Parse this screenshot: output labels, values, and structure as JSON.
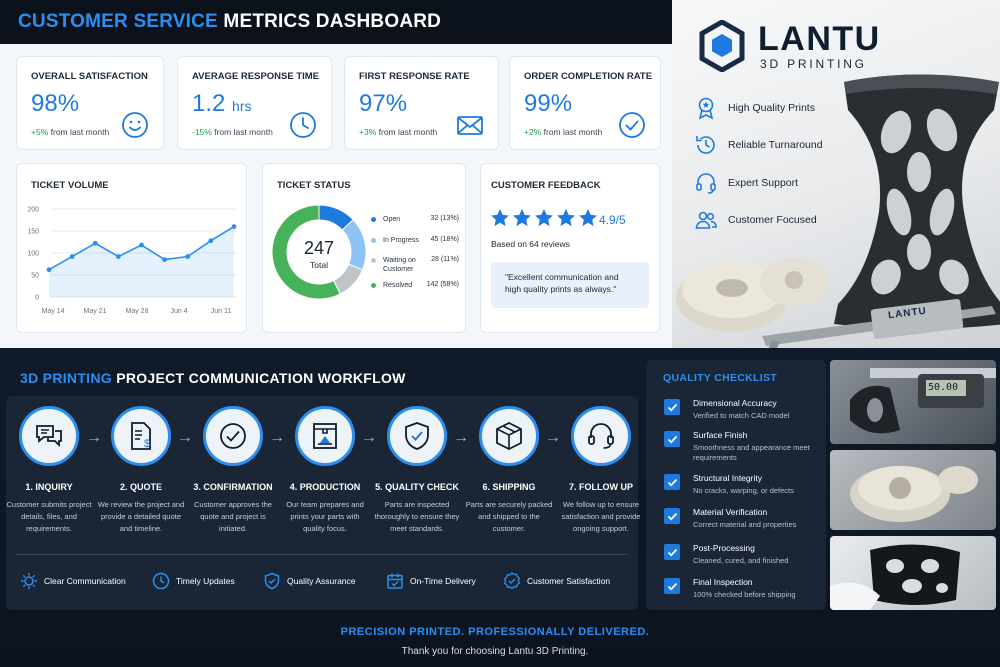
{
  "dashboard": {
    "title_accent": "CUSTOMER SERVICE",
    "title_rest": "METRICS DASHBOARD",
    "kpis": [
      {
        "title": "OVERALL SATISFACTION",
        "value": "98%",
        "unit": "",
        "change_value": "+5%",
        "change_text": "from last month",
        "icon": "smiley-icon"
      },
      {
        "title": "AVERAGE RESPONSE TIME",
        "value": "1.2",
        "unit": "hrs",
        "change_value": "-15%",
        "change_text": "from last month",
        "icon": "clock-icon"
      },
      {
        "title": "FIRST RESPONSE RATE",
        "value": "97%",
        "unit": "",
        "change_value": "+3%",
        "change_text": "from last month",
        "icon": "envelope-icon"
      },
      {
        "title": "ORDER COMPLETION RATE",
        "value": "99%",
        "unit": "",
        "change_value": "+2%",
        "change_text": "from last month",
        "icon": "check-circle-icon"
      }
    ],
    "ticket_volume_title": "TICKET VOLUME",
    "ticket_status": {
      "title": "TICKET STATUS",
      "total": "247",
      "total_label": "Total",
      "legend": [
        {
          "label": "Open",
          "count": "32 (13%)",
          "color": "#1f7ae0"
        },
        {
          "label": "In Progress",
          "count": "45 (18%)",
          "color": "#8fc3f5"
        },
        {
          "label": "Waiting on Customer",
          "count": "28 (11%)",
          "color": "#bfc4ca"
        },
        {
          "label": "Resolved",
          "count": "142 (58%)",
          "color": "#46b35a"
        }
      ]
    },
    "feedback": {
      "title": "CUSTOMER FEEDBACK",
      "rating": "4.9/5",
      "based_on": "Based on 64 reviews",
      "quote": "\"Excellent communication and high quality prints as always.\""
    }
  },
  "chart_data": [
    {
      "type": "line",
      "title": "TICKET VOLUME",
      "x_ticks": [
        "May 14",
        "May 21",
        "May 28",
        "Jun 4",
        "Jun 11"
      ],
      "y_ticks": [
        "0",
        "50",
        "100",
        "150",
        "200"
      ],
      "ylim": [
        0,
        200
      ],
      "series": [
        {
          "values": [
            62,
            92,
            122,
            92,
            118,
            85,
            92,
            128,
            160
          ]
        }
      ],
      "color": "#2c8ff0",
      "grid": true
    },
    {
      "type": "pie",
      "title": "TICKET STATUS",
      "labels": [
        "Open",
        "In Progress",
        "Waiting on Customer",
        "Resolved"
      ],
      "values": [
        32,
        45,
        28,
        142
      ],
      "colors": [
        "#1f7ae0",
        "#8fc3f5",
        "#bfc4ca",
        "#46b35a"
      ]
    }
  ],
  "brand": {
    "name": "LANTU",
    "tagline": "3D PRINTING",
    "features": [
      {
        "label": "High Quality Prints",
        "icon": "badge-icon"
      },
      {
        "label": "Reliable Turnaround",
        "icon": "clock-arrow-icon"
      },
      {
        "label": "Expert Support",
        "icon": "headset-icon"
      },
      {
        "label": "Customer Focused",
        "icon": "users-icon"
      }
    ],
    "caliper_label": "LANTU"
  },
  "workflow": {
    "title_accent": "3D PRINTING",
    "title_rest": "PROJECT COMMUNICATION WORKFLOW",
    "steps": [
      {
        "name": "1. INQUIRY",
        "desc": "Customer submits project details, files, and requirements.",
        "icon": "chat-icon"
      },
      {
        "name": "2. QUOTE",
        "desc": "We review the project and provide a detailed quote and timeline.",
        "icon": "quote-document-icon"
      },
      {
        "name": "3. CONFIRMATION",
        "desc": "Customer approves the quote and project is initiated.",
        "icon": "check-circle-icon"
      },
      {
        "name": "4. PRODUCTION",
        "desc": "Our team prepares and prints your parts with quality focus.",
        "icon": "printer-icon"
      },
      {
        "name": "5. QUALITY CHECK",
        "desc": "Parts are inspected thoroughly to ensure they meet standards.",
        "icon": "shield-check-icon"
      },
      {
        "name": "6. SHIPPING",
        "desc": "Parts are securely packed and shipped to the customer.",
        "icon": "box-icon"
      },
      {
        "name": "7. FOLLOW UP",
        "desc": "We follow up to ensure satisfaction and provide ongoing support.",
        "icon": "headset-icon"
      }
    ],
    "pillars": [
      {
        "label": "Clear Communication",
        "icon": "sun-icon"
      },
      {
        "label": "Timely Updates",
        "icon": "clock-icon"
      },
      {
        "label": "Quality Assurance",
        "icon": "shield-check-icon"
      },
      {
        "label": "On-Time Delivery",
        "icon": "calendar-icon"
      },
      {
        "label": "Customer Satisfaction",
        "icon": "award-icon"
      }
    ]
  },
  "quality_checklist": {
    "title": "QUALITY CHECKLIST",
    "items": [
      {
        "title": "Dimensional Accuracy",
        "desc": "Verified to match CAD model"
      },
      {
        "title": "Surface Finish",
        "desc": "Smoothness and appearance meet requirements"
      },
      {
        "title": "Structural Integrity",
        "desc": "No cracks, warping, or defects"
      },
      {
        "title": "Material Verification",
        "desc": "Correct material and properties"
      },
      {
        "title": "Post-Processing",
        "desc": "Cleaned, cured, and finished"
      },
      {
        "title": "Final Inspection",
        "desc": "100% checked before shipping"
      }
    ],
    "caliper_readout": "50.00"
  },
  "footer": {
    "tagline": "PRECISION PRINTED. PROFESSIONALLY DELIVERED.",
    "thanks": "Thank you for choosing Lantu 3D Printing."
  },
  "colors": {
    "accent": "#2c8ff0",
    "positive": "#1d9a4a",
    "star": "#1f7ae0"
  }
}
